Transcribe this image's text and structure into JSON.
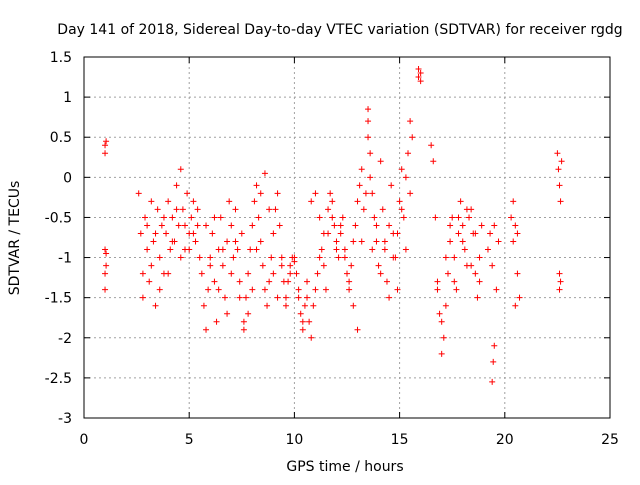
{
  "chart_data": {
    "type": "scatter",
    "title": "Day 141 of 2018, Sidereal Day-to-day VTEC variation (SDTVAR) for receiver rgdg",
    "xlabel": "GPS time / hours",
    "ylabel": "SDTVAR / TECUs",
    "xlim": [
      0,
      25
    ],
    "ylim": [
      -3,
      1.5
    ],
    "xticks": [
      0,
      5,
      10,
      15,
      20,
      25
    ],
    "xtick_labels": [
      "0",
      "5",
      "10",
      "15",
      "20",
      "25"
    ],
    "yticks": [
      -3,
      -2.5,
      -2,
      -1.5,
      -1,
      -0.5,
      0,
      0.5,
      1,
      1.5
    ],
    "ytick_labels": [
      "-3",
      "-2.5",
      "-2",
      "-1.5",
      "-1",
      "-0.5",
      "0",
      "0.5",
      "1",
      "1.5"
    ],
    "grid": true,
    "marker": "+",
    "marker_color": "#ff0000",
    "series": [
      {
        "name": "SDTVAR",
        "x": [
          1.0,
          1.0,
          1.0,
          1.0,
          1.0,
          1.05,
          1.05,
          1.05,
          2.6,
          2.7,
          2.8,
          2.9,
          3.0,
          3.1,
          3.2,
          3.3,
          3.4,
          3.5,
          3.6,
          3.7,
          3.8,
          3.9,
          4.0,
          4.1,
          4.2,
          4.3,
          4.4,
          4.5,
          4.6,
          4.7,
          4.8,
          4.9,
          5.0,
          5.1,
          5.2,
          5.3,
          5.4,
          5.5,
          2.8,
          3.0,
          3.2,
          3.4,
          3.6,
          3.8,
          4.0,
          4.2,
          4.4,
          4.6,
          4.8,
          5.0,
          5.2,
          5.4,
          5.6,
          5.7,
          5.8,
          5.9,
          6.0,
          6.1,
          6.2,
          6.3,
          6.4,
          6.5,
          6.6,
          6.7,
          6.8,
          6.9,
          7.0,
          7.1,
          7.2,
          7.3,
          7.4,
          7.5,
          5.8,
          6.0,
          6.2,
          6.4,
          6.6,
          6.8,
          7.0,
          7.2,
          7.4,
          7.6,
          7.7,
          7.8,
          7.9,
          8.0,
          8.1,
          8.2,
          8.3,
          8.4,
          8.5,
          8.6,
          8.7,
          8.8,
          8.9,
          9.0,
          9.1,
          9.2,
          9.3,
          9.4,
          9.5,
          7.6,
          7.8,
          8.0,
          8.2,
          8.4,
          8.6,
          8.8,
          9.0,
          9.2,
          9.4,
          9.6,
          9.7,
          9.8,
          9.9,
          10.0,
          10.1,
          10.2,
          10.3,
          10.4,
          10.5,
          10.6,
          10.7,
          10.8,
          10.9,
          11.0,
          11.1,
          11.2,
          11.3,
          11.4,
          11.5,
          9.6,
          9.8,
          10.0,
          10.2,
          10.4,
          10.6,
          10.8,
          11.0,
          11.2,
          11.4,
          11.6,
          11.7,
          11.8,
          11.9,
          12.0,
          12.1,
          12.2,
          12.3,
          12.4,
          12.5,
          12.6,
          12.7,
          12.8,
          12.9,
          13.0,
          13.1,
          13.2,
          13.3,
          13.4,
          11.6,
          11.8,
          12.0,
          12.2,
          12.4,
          12.6,
          12.8,
          13.0,
          13.2,
          13.5,
          13.5,
          13.5,
          13.6,
          13.6,
          13.7,
          13.8,
          13.9,
          14.0,
          14.1,
          14.2,
          14.3,
          14.4,
          14.5,
          14.6,
          14.7,
          14.8,
          14.9,
          15.0,
          15.1,
          15.2,
          15.3,
          15.4,
          15.5,
          15.6,
          13.7,
          13.9,
          14.1,
          14.3,
          14.5,
          14.7,
          14.9,
          15.1,
          15.3,
          15.5,
          15.9,
          15.9,
          16.0,
          16.0,
          16.5,
          16.6,
          16.7,
          16.8,
          16.9,
          17.0,
          17.1,
          17.2,
          17.3,
          17.4,
          17.5,
          17.6,
          17.7,
          17.8,
          17.9,
          18.0,
          18.1,
          18.2,
          18.3,
          18.4,
          18.5,
          18.6,
          18.7,
          18.8,
          18.9,
          16.8,
          17.0,
          17.2,
          17.4,
          17.6,
          17.8,
          18.0,
          18.2,
          18.4,
          18.6,
          18.8,
          19.2,
          19.3,
          19.4,
          19.5,
          19.6,
          19.7,
          19.4,
          19.45,
          19.5,
          20.3,
          20.4,
          20.5,
          20.6,
          20.7,
          20.4,
          20.5,
          20.6,
          22.5,
          22.55,
          22.6,
          22.65,
          22.7,
          22.6,
          22.6,
          22.65
        ],
        "y": [
          0.4,
          0.3,
          -0.9,
          -1.2,
          -1.4,
          -1.1,
          0.45,
          -0.95,
          -0.2,
          -0.7,
          -1.2,
          -0.5,
          -0.9,
          -1.3,
          -0.3,
          -0.8,
          -1.6,
          -0.4,
          -1.0,
          -0.6,
          -1.2,
          -0.7,
          -0.3,
          -0.9,
          -0.5,
          -0.8,
          -0.1,
          -0.6,
          0.1,
          -0.4,
          -0.9,
          -0.2,
          -0.7,
          -0.5,
          -0.3,
          -0.8,
          -0.6,
          -1.0,
          -1.5,
          -0.6,
          -1.1,
          -0.7,
          -1.4,
          -0.5,
          -1.2,
          -0.8,
          -0.4,
          -1.0,
          -0.6,
          -0.9,
          -0.7,
          -0.4,
          -1.2,
          -1.6,
          -1.9,
          -1.4,
          -1.0,
          -0.7,
          -1.3,
          -1.8,
          -0.9,
          -0.5,
          -1.1,
          -1.5,
          -0.8,
          -0.3,
          -0.6,
          -1.0,
          -0.4,
          -0.9,
          -1.3,
          -0.7,
          -0.6,
          -1.1,
          -0.5,
          -1.4,
          -0.9,
          -1.7,
          -1.2,
          -0.8,
          -1.5,
          -1.8,
          -1.5,
          -1.2,
          -0.9,
          -0.6,
          -0.3,
          -0.1,
          -0.5,
          -0.8,
          -1.1,
          -1.4,
          -1.6,
          -1.3,
          -1.0,
          -0.7,
          -0.4,
          -0.2,
          -0.6,
          -1.0,
          -1.3,
          -1.9,
          -1.7,
          -1.4,
          -0.9,
          -0.2,
          0.05,
          -0.4,
          -1.2,
          -1.5,
          -1.1,
          -1.5,
          -1.3,
          -1.1,
          -1.0,
          -1.0,
          -1.2,
          -1.5,
          -1.7,
          -1.9,
          -1.6,
          -1.3,
          -1.8,
          -2.0,
          -1.6,
          -1.4,
          -1.2,
          -1.0,
          -0.9,
          -1.1,
          -1.4,
          -1.6,
          -1.2,
          -1.05,
          -1.4,
          -1.8,
          -1.5,
          -0.3,
          -0.2,
          -0.5,
          -0.7,
          -0.4,
          -0.2,
          -0.3,
          -0.6,
          -0.8,
          -1.0,
          -0.7,
          -0.5,
          -0.9,
          -1.2,
          -1.4,
          -1.1,
          -0.8,
          -0.6,
          -0.3,
          -0.1,
          0.1,
          -0.4,
          -0.2,
          -0.7,
          -0.5,
          -0.9,
          -0.6,
          -1.0,
          -1.3,
          -1.6,
          -1.9,
          -0.8,
          0.85,
          0.7,
          0.5,
          0.3,
          0.0,
          -0.2,
          -0.5,
          -0.8,
          -1.1,
          0.2,
          -0.4,
          -0.9,
          -1.3,
          -0.6,
          -0.1,
          -0.7,
          -1.0,
          -1.4,
          -0.3,
          0.1,
          -0.5,
          -0.9,
          0.3,
          0.7,
          0.5,
          -0.9,
          -0.6,
          -1.2,
          -0.8,
          -1.5,
          -1.0,
          -0.7,
          -0.4,
          0.0,
          -0.2,
          1.35,
          1.25,
          1.2,
          1.3,
          0.4,
          0.2,
          -0.5,
          -1.3,
          -1.7,
          -2.2,
          -2.0,
          -1.6,
          -1.2,
          -0.8,
          -0.5,
          -1.0,
          -1.4,
          -0.7,
          -0.3,
          -0.6,
          -0.9,
          -1.1,
          -0.5,
          -0.4,
          -0.7,
          -1.2,
          -1.5,
          -1.0,
          -0.6,
          -1.4,
          -1.8,
          -1.0,
          -0.6,
          -1.3,
          -0.5,
          -0.8,
          -0.4,
          -1.1,
          -0.7,
          -1.3,
          -0.9,
          -0.7,
          -1.1,
          -0.6,
          -1.4,
          -0.8,
          -2.55,
          -2.3,
          -2.1,
          -0.5,
          -0.8,
          -0.6,
          -1.2,
          -1.5,
          -0.3,
          -1.6,
          -0.7,
          0.3,
          0.1,
          -0.1,
          -0.3,
          0.2,
          -1.2,
          -1.4,
          -1.3
        ]
      }
    ]
  }
}
